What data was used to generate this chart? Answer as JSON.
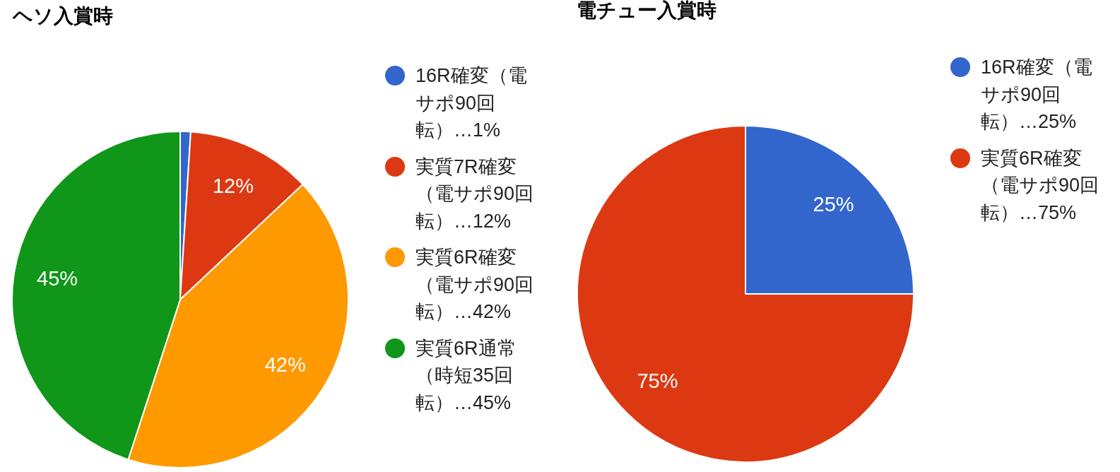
{
  "chart_data": [
    {
      "type": "pie",
      "title": "ヘソ入賞時",
      "categories": [
        "16R確変（電サポ90回転）…1%",
        "実質7R確変（電サポ90回転）…12%",
        "実質6R確変（電サポ90回転）…42%",
        "実質6R通常（時短35回転）…45%"
      ],
      "values": [
        1,
        12,
        42,
        45
      ],
      "colors": [
        "#3366cc",
        "#dc3912",
        "#ff9900",
        "#109618"
      ],
      "value_labels": [
        null,
        "12%",
        "42%",
        "45%"
      ],
      "legend": "right"
    },
    {
      "type": "pie",
      "title": "電チュー入賞時",
      "categories": [
        "16R確変（電サポ90回転）…25%",
        "実質6R確変（電サポ90回転）…75%"
      ],
      "values": [
        25,
        75
      ],
      "colors": [
        "#3366cc",
        "#dc3912"
      ],
      "value_labels": [
        "25%",
        "75%"
      ],
      "legend": "right"
    }
  ]
}
